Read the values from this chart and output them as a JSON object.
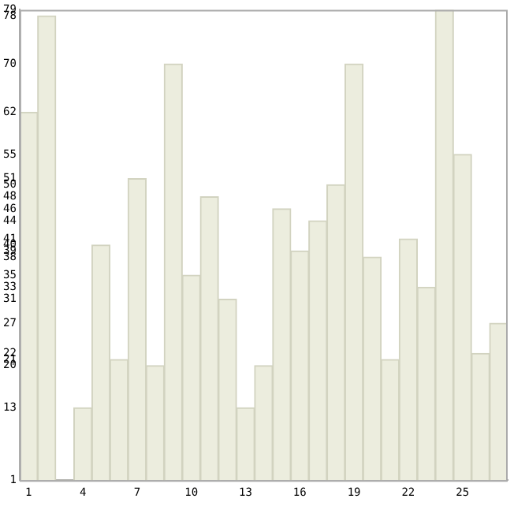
{
  "chart_data": {
    "type": "bar",
    "categories": [
      "1",
      null,
      null,
      "4",
      null,
      null,
      "7",
      null,
      null,
      "10",
      null,
      null,
      "13",
      null,
      null,
      "16",
      null,
      null,
      "19",
      null,
      null,
      "22",
      null,
      null,
      "25",
      null,
      null
    ],
    "values": [
      62,
      78,
      1,
      13,
      40,
      21,
      51,
      20,
      70,
      35,
      48,
      31,
      13,
      20,
      46,
      39,
      44,
      50,
      70,
      38,
      21,
      41,
      33,
      79,
      55,
      22,
      27
    ],
    "color": "#ecedde",
    "ylim": [
      1,
      79
    ],
    "yticks": [
      1,
      13,
      20,
      21,
      22,
      27,
      31,
      33,
      35,
      38,
      39,
      40,
      41,
      44,
      46,
      48,
      50,
      51,
      55,
      62,
      70,
      78,
      79
    ],
    "grid": false
  }
}
